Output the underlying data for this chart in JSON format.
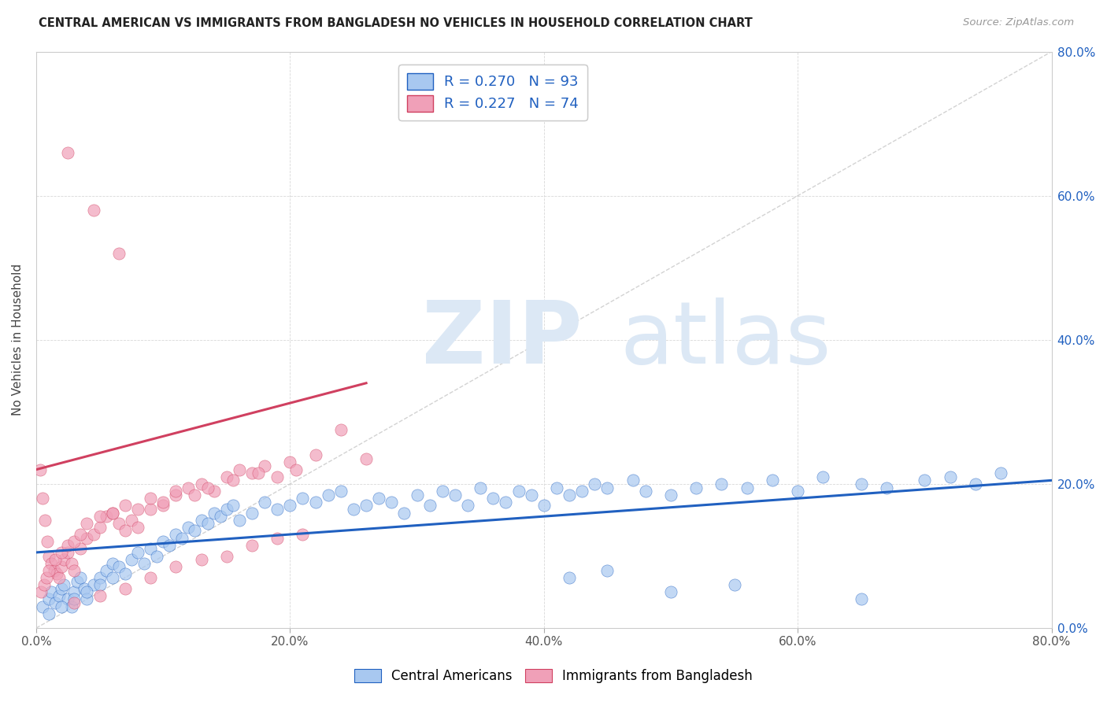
{
  "title": "CENTRAL AMERICAN VS IMMIGRANTS FROM BANGLADESH NO VEHICLES IN HOUSEHOLD CORRELATION CHART",
  "source": "Source: ZipAtlas.com",
  "ylabel": "No Vehicles in Household",
  "legend_label1": "Central Americans",
  "legend_label2": "Immigrants from Bangladesh",
  "r1": 0.27,
  "n1": 93,
  "r2": 0.227,
  "n2": 74,
  "color_blue": "#a8c8f0",
  "color_pink": "#f0a0b8",
  "color_line_blue": "#2060c0",
  "color_line_pink": "#d04060",
  "color_diag": "#c0c0c0",
  "color_r_value": "#2060c0",
  "color_n_value": "#e03060",
  "xlim": [
    0,
    80
  ],
  "ylim": [
    0,
    80
  ],
  "xtick_vals": [
    0,
    20,
    40,
    60,
    80
  ],
  "ytick_vals": [
    0,
    20,
    40,
    60,
    80
  ],
  "figsize": [
    14.06,
    8.92
  ],
  "blue_x": [
    0.5,
    1.0,
    1.2,
    1.5,
    1.8,
    2.0,
    2.2,
    2.5,
    2.8,
    3.0,
    3.2,
    3.5,
    3.8,
    4.0,
    4.5,
    5.0,
    5.5,
    6.0,
    6.5,
    7.0,
    7.5,
    8.0,
    8.5,
    9.0,
    9.5,
    10.0,
    10.5,
    11.0,
    11.5,
    12.0,
    12.5,
    13.0,
    13.5,
    14.0,
    14.5,
    15.0,
    15.5,
    16.0,
    17.0,
    18.0,
    19.0,
    20.0,
    21.0,
    22.0,
    23.0,
    24.0,
    25.0,
    26.0,
    27.0,
    28.0,
    29.0,
    30.0,
    31.0,
    32.0,
    33.0,
    34.0,
    35.0,
    36.0,
    37.0,
    38.0,
    39.0,
    40.0,
    41.0,
    42.0,
    43.0,
    44.0,
    45.0,
    47.0,
    48.0,
    50.0,
    52.0,
    54.0,
    56.0,
    58.0,
    60.0,
    62.0,
    65.0,
    67.0,
    70.0,
    72.0,
    74.0,
    76.0,
    1.0,
    2.0,
    3.0,
    4.0,
    5.0,
    6.0,
    42.0,
    45.0,
    50.0,
    55.0,
    65.0
  ],
  "blue_y": [
    3.0,
    4.0,
    5.0,
    3.5,
    4.5,
    5.5,
    6.0,
    4.0,
    3.0,
    5.0,
    6.5,
    7.0,
    5.5,
    4.0,
    6.0,
    7.0,
    8.0,
    9.0,
    8.5,
    7.5,
    9.5,
    10.5,
    9.0,
    11.0,
    10.0,
    12.0,
    11.5,
    13.0,
    12.5,
    14.0,
    13.5,
    15.0,
    14.5,
    16.0,
    15.5,
    16.5,
    17.0,
    15.0,
    16.0,
    17.5,
    16.5,
    17.0,
    18.0,
    17.5,
    18.5,
    19.0,
    16.5,
    17.0,
    18.0,
    17.5,
    16.0,
    18.5,
    17.0,
    19.0,
    18.5,
    17.0,
    19.5,
    18.0,
    17.5,
    19.0,
    18.5,
    17.0,
    19.5,
    18.5,
    19.0,
    20.0,
    19.5,
    20.5,
    19.0,
    18.5,
    19.5,
    20.0,
    19.5,
    20.5,
    19.0,
    21.0,
    20.0,
    19.5,
    20.5,
    21.0,
    20.0,
    21.5,
    2.0,
    3.0,
    4.0,
    5.0,
    6.0,
    7.0,
    7.0,
    8.0,
    5.0,
    6.0,
    4.0
  ],
  "pink_x": [
    0.3,
    0.5,
    0.7,
    0.9,
    1.0,
    1.2,
    1.4,
    1.6,
    1.8,
    2.0,
    2.2,
    2.5,
    2.8,
    3.0,
    3.5,
    4.0,
    4.5,
    5.0,
    5.5,
    6.0,
    6.5,
    7.0,
    7.5,
    8.0,
    9.0,
    10.0,
    11.0,
    12.0,
    13.0,
    14.0,
    15.0,
    16.0,
    17.0,
    18.0,
    19.0,
    20.0,
    22.0,
    24.0,
    26.0,
    0.4,
    0.6,
    0.8,
    1.0,
    1.5,
    2.0,
    2.5,
    3.0,
    3.5,
    4.0,
    5.0,
    6.0,
    7.0,
    8.0,
    9.0,
    10.0,
    11.0,
    12.5,
    13.5,
    15.5,
    17.5,
    20.5,
    3.0,
    5.0,
    7.0,
    9.0,
    11.0,
    13.0,
    15.0,
    17.0,
    19.0,
    21.0,
    2.5,
    4.5,
    6.5
  ],
  "pink_y": [
    22.0,
    18.0,
    15.0,
    12.0,
    10.0,
    9.0,
    8.0,
    7.5,
    7.0,
    8.5,
    9.5,
    10.5,
    9.0,
    8.0,
    11.0,
    12.5,
    13.0,
    14.0,
    15.5,
    16.0,
    14.5,
    13.5,
    15.0,
    14.0,
    16.5,
    17.0,
    18.5,
    19.5,
    20.0,
    19.0,
    21.0,
    22.0,
    21.5,
    22.5,
    21.0,
    23.0,
    24.0,
    27.5,
    23.5,
    5.0,
    6.0,
    7.0,
    8.0,
    9.5,
    10.5,
    11.5,
    12.0,
    13.0,
    14.5,
    15.5,
    16.0,
    17.0,
    16.5,
    18.0,
    17.5,
    19.0,
    18.5,
    19.5,
    20.5,
    21.5,
    22.0,
    3.5,
    4.5,
    5.5,
    7.0,
    8.5,
    9.5,
    10.0,
    11.5,
    12.5,
    13.0,
    66.0,
    58.0,
    52.0
  ],
  "blue_line_x": [
    0,
    80
  ],
  "blue_line_y": [
    10.5,
    20.5
  ],
  "pink_line_x": [
    0,
    26
  ],
  "pink_line_y": [
    22.0,
    34.0
  ]
}
